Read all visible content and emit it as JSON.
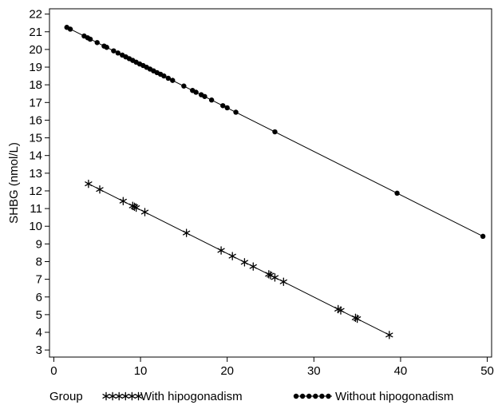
{
  "chart_data": {
    "type": "scatter",
    "title": "",
    "xlabel": "",
    "ylabel": "SHBG (nmol/L)",
    "xlim": [
      -0.5,
      50.5
    ],
    "ylim": [
      2.6,
      22.3
    ],
    "xticks": [
      0,
      10,
      20,
      30,
      40,
      50
    ],
    "yticks": [
      3,
      4,
      5,
      6,
      7,
      8,
      9,
      10,
      11,
      12,
      13,
      14,
      15,
      16,
      17,
      18,
      19,
      20,
      21,
      22
    ],
    "grid": false,
    "legend": {
      "position": "bottom",
      "title": "Group"
    },
    "series": [
      {
        "name": "With hipogonadism",
        "marker": "star",
        "fit_line": [
          [
            4.0,
            12.4
          ],
          [
            38.7,
            3.85
          ]
        ],
        "x": [
          4.0,
          5.3,
          8.0,
          9.1,
          9.3,
          9.5,
          10.5,
          15.3,
          19.3,
          20.6,
          22.0,
          23.0,
          24.8,
          25.0,
          25.5,
          26.5,
          32.8,
          33.1,
          34.8,
          35.0,
          38.7
        ],
        "y": [
          12.4,
          12.08,
          11.42,
          11.15,
          11.1,
          11.05,
          10.8,
          9.62,
          8.63,
          8.31,
          7.96,
          7.72,
          7.28,
          7.23,
          7.1,
          6.86,
          5.31,
          5.24,
          4.82,
          4.77,
          3.85
        ]
      },
      {
        "name": "Without hipogonadism",
        "marker": "filled-circle",
        "fit_line": [
          [
            1.5,
            21.25
          ],
          [
            49.5,
            9.43
          ]
        ],
        "x": [
          1.5,
          1.9,
          3.5,
          3.9,
          4.2,
          5.0,
          5.8,
          6.1,
          6.9,
          7.4,
          7.9,
          8.3,
          8.7,
          9.1,
          9.5,
          9.9,
          10.3,
          10.7,
          11.1,
          11.5,
          11.9,
          12.3,
          12.7,
          13.2,
          13.7,
          15.0,
          16.0,
          16.4,
          17.0,
          17.4,
          18.2,
          19.5,
          20.0,
          21.0,
          25.5,
          39.6,
          49.5
        ],
        "y": [
          21.25,
          21.15,
          20.76,
          20.66,
          20.58,
          20.39,
          20.19,
          20.12,
          19.92,
          19.8,
          19.68,
          19.58,
          19.48,
          19.38,
          19.28,
          19.18,
          19.09,
          18.99,
          18.89,
          18.79,
          18.69,
          18.6,
          18.5,
          18.37,
          18.25,
          17.93,
          17.68,
          17.58,
          17.44,
          17.34,
          17.14,
          16.82,
          16.7,
          16.45,
          15.34,
          11.87,
          9.43
        ]
      }
    ]
  }
}
